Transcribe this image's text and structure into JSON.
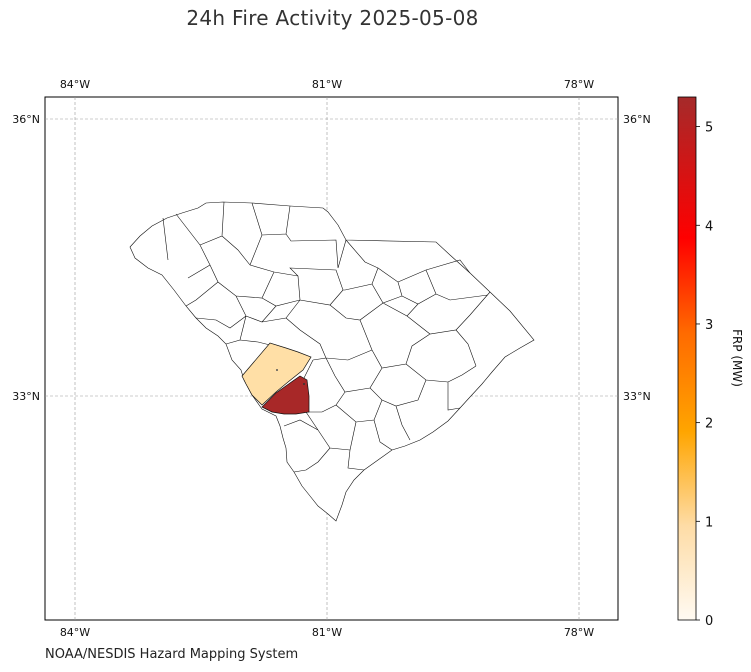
{
  "title": "24h Fire Activity 2025-05-08",
  "credit": "NOAA/NESDIS Hazard Mapping System",
  "map": {
    "lon_ticks": [
      "84°W",
      "81°W",
      "78°W"
    ],
    "lat_ticks": [
      "36°N",
      "33°N"
    ],
    "highlighted": [
      {
        "region": "county-a",
        "frp_mw": 0.7,
        "color": "#ffdfa6"
      },
      {
        "region": "county-b",
        "frp_mw": 5.2,
        "color": "#a82828"
      }
    ]
  },
  "colorbar": {
    "label": "FRP (MW)",
    "ticks": [
      "0",
      "1",
      "2",
      "3",
      "4",
      "5"
    ],
    "range": [
      0,
      5.3
    ],
    "colors": [
      "#fff7ec",
      "#fedcaa",
      "#ffa500",
      "#ff6400",
      "#ff0000",
      "#a52a2a"
    ]
  }
}
